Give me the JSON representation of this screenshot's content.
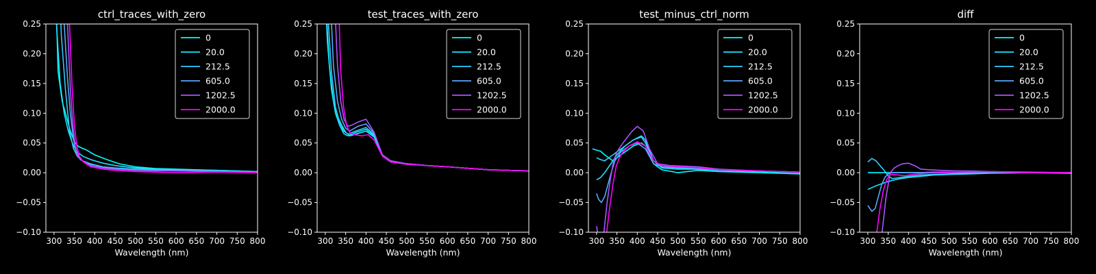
{
  "chart_data": [
    {
      "type": "line",
      "title": "ctrl_traces_with_zero",
      "xlabel": "Wavelength (nm)",
      "ylabel": "",
      "xlim": [
        280,
        800
      ],
      "ylim": [
        -0.1,
        0.25
      ],
      "xticks": [
        "300",
        "350",
        "400",
        "450",
        "500",
        "550",
        "600",
        "650",
        "700",
        "750",
        "800"
      ],
      "yticks": [
        "−0.10",
        "−0.05",
        "0.00",
        "0.05",
        "0.10",
        "0.15",
        "0.20",
        "0.25"
      ],
      "legend": "top-right",
      "series": [
        {
          "name": "0",
          "color": "#00ffff",
          "x": [
            300,
            310,
            320,
            330,
            340,
            350,
            360,
            380,
            400,
            430,
            460,
            500,
            550,
            600,
            700,
            800
          ],
          "y": [
            0.4,
            0.17,
            0.12,
            0.095,
            0.07,
            0.052,
            0.044,
            0.038,
            0.03,
            0.022,
            0.015,
            0.01,
            0.007,
            0.006,
            0.004,
            0.002
          ]
        },
        {
          "name": "20.0",
          "color": "#1ae5ff",
          "x": [
            300,
            305,
            315,
            325,
            335,
            345,
            355,
            370,
            390,
            420,
            450,
            500,
            550,
            600,
            700,
            800
          ],
          "y": [
            0.4,
            0.26,
            0.15,
            0.1,
            0.07,
            0.05,
            0.036,
            0.028,
            0.022,
            0.016,
            0.012,
            0.008,
            0.006,
            0.005,
            0.004,
            0.002
          ]
        },
        {
          "name": "212.5",
          "color": "#33ccff",
          "x": [
            308,
            318,
            328,
            338,
            348,
            358,
            370,
            390,
            420,
            450,
            500,
            550,
            600,
            700,
            800
          ],
          "y": [
            0.4,
            0.23,
            0.14,
            0.07,
            0.04,
            0.027,
            0.02,
            0.015,
            0.01,
            0.008,
            0.006,
            0.005,
            0.004,
            0.003,
            0.002
          ]
        },
        {
          "name": "605.0",
          "color": "#55aaff",
          "x": [
            318,
            325,
            333,
            340,
            348,
            356,
            365,
            380,
            400,
            450,
            500,
            550,
            600,
            700,
            800
          ],
          "y": [
            0.4,
            0.25,
            0.16,
            0.1,
            0.055,
            0.03,
            0.022,
            0.016,
            0.011,
            0.007,
            0.005,
            0.004,
            0.003,
            0.002,
            0.001
          ]
        },
        {
          "name": "1202.5",
          "color": "#aa55ff",
          "x": [
            327,
            333,
            340,
            346,
            352,
            360,
            370,
            390,
            420,
            450,
            500,
            550,
            600,
            700,
            800
          ],
          "y": [
            0.4,
            0.25,
            0.14,
            0.08,
            0.045,
            0.028,
            0.02,
            0.012,
            0.008,
            0.006,
            0.004,
            0.003,
            0.003,
            0.002,
            0.001
          ]
        },
        {
          "name": "2000.0",
          "color": "#ff00ff",
          "x": [
            333,
            338,
            344,
            350,
            356,
            362,
            372,
            390,
            420,
            450,
            500,
            550,
            600,
            700,
            800
          ],
          "y": [
            0.4,
            0.25,
            0.15,
            0.08,
            0.045,
            0.028,
            0.018,
            0.01,
            0.006,
            0.004,
            0.002,
            0.001,
            0.0,
            0.001,
            0.0
          ]
        }
      ]
    },
    {
      "type": "line",
      "title": "test_traces_with_zero",
      "xlabel": "Wavelength (nm)",
      "ylabel": "",
      "xlim": [
        280,
        800
      ],
      "ylim": [
        -0.1,
        0.25
      ],
      "xticks": [
        "300",
        "350",
        "400",
        "450",
        "500",
        "550",
        "600",
        "650",
        "700",
        "750",
        "800"
      ],
      "yticks": [
        "−0.10",
        "−0.05",
        "0.00",
        "0.05",
        "0.10",
        "0.15",
        "0.20",
        "0.25"
      ],
      "legend": "top-right",
      "series": [
        {
          "name": "0",
          "color": "#00ffff",
          "x": [
            300,
            310,
            320,
            330,
            340,
            350,
            360,
            380,
            400,
            420,
            440,
            460,
            500,
            550,
            600,
            700,
            800
          ],
          "y": [
            0.3,
            0.18,
            0.12,
            0.095,
            0.08,
            0.068,
            0.062,
            0.066,
            0.07,
            0.06,
            0.03,
            0.02,
            0.015,
            0.012,
            0.01,
            0.005,
            0.003
          ]
        },
        {
          "name": "20.0",
          "color": "#1ae5ff",
          "x": [
            300,
            305,
            315,
            325,
            335,
            345,
            355,
            375,
            400,
            420,
            440,
            460,
            500,
            550,
            600,
            700,
            800
          ],
          "y": [
            0.3,
            0.22,
            0.14,
            0.1,
            0.08,
            0.066,
            0.062,
            0.068,
            0.073,
            0.062,
            0.03,
            0.02,
            0.015,
            0.012,
            0.01,
            0.005,
            0.003
          ]
        },
        {
          "name": "212.5",
          "color": "#33ccff",
          "x": [
            305,
            315,
            325,
            335,
            345,
            355,
            375,
            400,
            420,
            440,
            460,
            500,
            550,
            600,
            700,
            800
          ],
          "y": [
            0.28,
            0.17,
            0.11,
            0.085,
            0.07,
            0.065,
            0.07,
            0.076,
            0.064,
            0.03,
            0.02,
            0.015,
            0.012,
            0.01,
            0.005,
            0.003
          ]
        },
        {
          "name": "605.0",
          "color": "#55aaff",
          "x": [
            312,
            320,
            330,
            340,
            350,
            360,
            380,
            400,
            420,
            440,
            460,
            500,
            550,
            600,
            700,
            800
          ],
          "y": [
            0.3,
            0.18,
            0.12,
            0.09,
            0.075,
            0.07,
            0.078,
            0.082,
            0.066,
            0.03,
            0.02,
            0.015,
            0.012,
            0.01,
            0.005,
            0.003
          ]
        },
        {
          "name": "1202.5",
          "color": "#aa55ff",
          "x": [
            322,
            330,
            338,
            346,
            355,
            365,
            380,
            400,
            420,
            440,
            460,
            500,
            550,
            600,
            700,
            800
          ],
          "y": [
            0.3,
            0.18,
            0.12,
            0.09,
            0.078,
            0.08,
            0.085,
            0.09,
            0.068,
            0.03,
            0.02,
            0.015,
            0.012,
            0.01,
            0.005,
            0.003
          ]
        },
        {
          "name": "2000.0",
          "color": "#ff00ff",
          "x": [
            332,
            338,
            345,
            352,
            360,
            372,
            390,
            405,
            420,
            440,
            460,
            500,
            550,
            600,
            700,
            800
          ],
          "y": [
            0.3,
            0.17,
            0.11,
            0.08,
            0.068,
            0.064,
            0.062,
            0.064,
            0.055,
            0.028,
            0.018,
            0.014,
            0.012,
            0.01,
            0.005,
            0.003
          ]
        }
      ]
    },
    {
      "type": "line",
      "title": "test_minus_ctrl_norm",
      "xlabel": "Wavelength (nm)",
      "ylabel": "",
      "xlim": [
        280,
        800
      ],
      "ylim": [
        -0.1,
        0.25
      ],
      "xticks": [
        "300",
        "350",
        "400",
        "450",
        "500",
        "550",
        "600",
        "650",
        "700",
        "750",
        "800"
      ],
      "yticks": [
        "−0.10",
        "−0.05",
        "0.00",
        "0.05",
        "0.10",
        "0.15",
        "0.20",
        "0.25"
      ],
      "legend": "top-right",
      "series": [
        {
          "name": "0",
          "color": "#00ffff",
          "x": [
            290,
            300,
            310,
            320,
            330,
            340,
            350,
            370,
            390,
            410,
            420,
            440,
            460,
            500,
            550,
            600,
            700,
            800
          ],
          "y": [
            0.04,
            0.038,
            0.036,
            0.03,
            0.025,
            0.02,
            0.025,
            0.035,
            0.045,
            0.05,
            0.045,
            0.015,
            0.005,
            0.0,
            0.004,
            0.002,
            0.0,
            -0.002
          ]
        },
        {
          "name": "20.0",
          "color": "#1ae5ff",
          "x": [
            300,
            310,
            320,
            330,
            340,
            350,
            370,
            390,
            410,
            420,
            440,
            460,
            500,
            550,
            600,
            700,
            800
          ],
          "y": [
            -0.012,
            -0.008,
            0.0,
            0.01,
            0.02,
            0.03,
            0.045,
            0.055,
            0.062,
            0.055,
            0.02,
            0.008,
            0.006,
            0.006,
            0.004,
            0.002,
            0.0
          ]
        },
        {
          "name": "212.5",
          "color": "#33ccff",
          "x": [
            300,
            310,
            320,
            330,
            340,
            350,
            370,
            390,
            410,
            420,
            440,
            460,
            500,
            550,
            600,
            700,
            800
          ],
          "y": [
            0.025,
            0.022,
            0.02,
            0.025,
            0.03,
            0.035,
            0.045,
            0.055,
            0.06,
            0.05,
            0.02,
            0.01,
            0.008,
            0.007,
            0.005,
            0.003,
            0.001
          ]
        },
        {
          "name": "605.0",
          "color": "#55aaff",
          "x": [
            300,
            305,
            312,
            320,
            328,
            336,
            345,
            360,
            380,
            400,
            420,
            440,
            460,
            500,
            550,
            600,
            700,
            800
          ],
          "y": [
            -0.035,
            -0.045,
            -0.05,
            -0.04,
            -0.02,
            0.0,
            0.02,
            0.035,
            0.045,
            0.05,
            0.04,
            0.015,
            0.01,
            0.01,
            0.008,
            0.005,
            0.003,
            0.001
          ]
        },
        {
          "name": "1202.5",
          "color": "#aa55ff",
          "x": [
            300,
            310,
            318,
            326,
            334,
            342,
            350,
            365,
            385,
            400,
            415,
            430,
            450,
            480,
            550,
            600,
            700,
            800
          ],
          "y": [
            -0.09,
            -0.13,
            -0.1,
            -0.05,
            -0.01,
            0.02,
            0.035,
            0.05,
            0.068,
            0.078,
            0.07,
            0.04,
            0.015,
            0.012,
            0.01,
            0.006,
            0.003,
            0.001
          ]
        },
        {
          "name": "2000.0",
          "color": "#ff00ff",
          "x": [
            325,
            332,
            340,
            348,
            356,
            365,
            380,
            400,
            420,
            440,
            460,
            500,
            550,
            600,
            700,
            800
          ],
          "y": [
            -0.1,
            -0.06,
            -0.02,
            0.01,
            0.025,
            0.035,
            0.045,
            0.052,
            0.045,
            0.02,
            0.012,
            0.01,
            0.008,
            0.005,
            0.003,
            0.001
          ]
        }
      ]
    },
    {
      "type": "line",
      "title": "diff",
      "xlabel": "Wavelength (nm)",
      "ylabel": "",
      "xlim": [
        280,
        800
      ],
      "ylim": [
        -0.1,
        0.25
      ],
      "xticks": [
        "300",
        "350",
        "400",
        "450",
        "500",
        "550",
        "600",
        "650",
        "700",
        "750",
        "800"
      ],
      "yticks": [
        "−0.10",
        "−0.05",
        "0.00",
        "0.05",
        "0.10",
        "0.15",
        "0.20",
        "0.25"
      ],
      "legend": "top-right",
      "series": [
        {
          "name": "0",
          "color": "#00ffff",
          "x": [
            300,
            800
          ],
          "y": [
            0.0,
            0.0
          ]
        },
        {
          "name": "20.0",
          "color": "#1ae5ff",
          "x": [
            300,
            320,
            340,
            360,
            380,
            400,
            430,
            460,
            500,
            550,
            600,
            700,
            800
          ],
          "y": [
            -0.028,
            -0.022,
            -0.017,
            -0.013,
            -0.01,
            -0.008,
            -0.006,
            -0.004,
            -0.003,
            -0.002,
            -0.001,
            0.0,
            -0.001
          ]
        },
        {
          "name": "212.5",
          "color": "#33ccff",
          "x": [
            300,
            310,
            320,
            330,
            340,
            350,
            360,
            380,
            400,
            430,
            460,
            500,
            550,
            600,
            700,
            800
          ],
          "y": [
            0.018,
            0.024,
            0.02,
            0.012,
            0.004,
            -0.005,
            -0.01,
            -0.008,
            -0.006,
            -0.004,
            -0.003,
            -0.002,
            -0.001,
            0.0,
            0.0,
            0.0
          ]
        },
        {
          "name": "605.0",
          "color": "#55aaff",
          "x": [
            300,
            310,
            318,
            326,
            334,
            342,
            350,
            360,
            380,
            400,
            430,
            460,
            500,
            550,
            600,
            700,
            800
          ],
          "y": [
            -0.055,
            -0.065,
            -0.06,
            -0.04,
            -0.02,
            -0.008,
            -0.002,
            0.0,
            0.0,
            0.0,
            0.0,
            0.001,
            0.001,
            0.001,
            0.001,
            0.0,
            0.0
          ]
        },
        {
          "name": "1202.5",
          "color": "#aa55ff",
          "x": [
            335,
            345,
            355,
            365,
            375,
            385,
            400,
            415,
            430,
            450,
            480,
            520,
            550,
            600,
            700,
            800
          ],
          "y": [
            -0.1,
            -0.04,
            0.0,
            0.008,
            0.012,
            0.015,
            0.016,
            0.012,
            0.006,
            0.005,
            0.004,
            0.003,
            0.003,
            0.002,
            0.001,
            0.0
          ]
        },
        {
          "name": "2000.0",
          "color": "#ff00ff",
          "x": [
            322,
            330,
            338,
            346,
            354,
            362,
            375,
            390,
            410,
            440,
            480,
            520,
            600,
            700,
            800
          ],
          "y": [
            -0.1,
            -0.06,
            -0.03,
            -0.012,
            -0.004,
            -0.003,
            -0.004,
            -0.005,
            -0.003,
            -0.001,
            0.0,
            0.001,
            0.002,
            0.0,
            0.0
          ]
        }
      ]
    }
  ]
}
